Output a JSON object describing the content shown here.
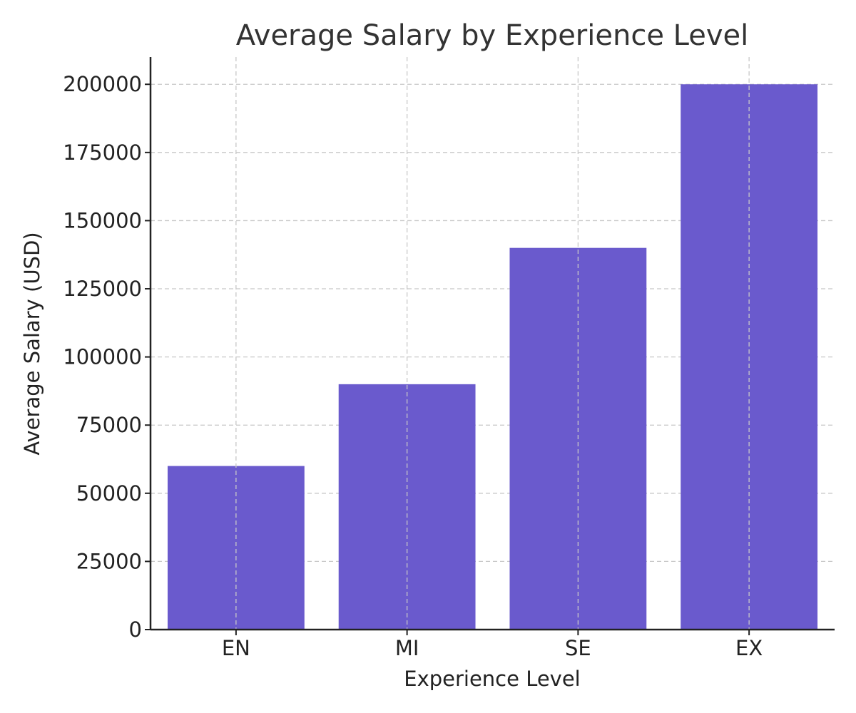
{
  "chart_data": {
    "type": "bar",
    "title": "Average Salary by Experience Level",
    "xlabel": "Experience Level",
    "ylabel": "Average Salary (USD)",
    "categories": [
      "EN",
      "MI",
      "SE",
      "EX"
    ],
    "values": [
      60000,
      90000,
      140000,
      200000
    ],
    "ylim": [
      0,
      210000
    ],
    "yticks": [
      0,
      25000,
      50000,
      75000,
      100000,
      125000,
      150000,
      175000,
      200000
    ],
    "grid": true,
    "bar_color": "#6a5acd"
  }
}
